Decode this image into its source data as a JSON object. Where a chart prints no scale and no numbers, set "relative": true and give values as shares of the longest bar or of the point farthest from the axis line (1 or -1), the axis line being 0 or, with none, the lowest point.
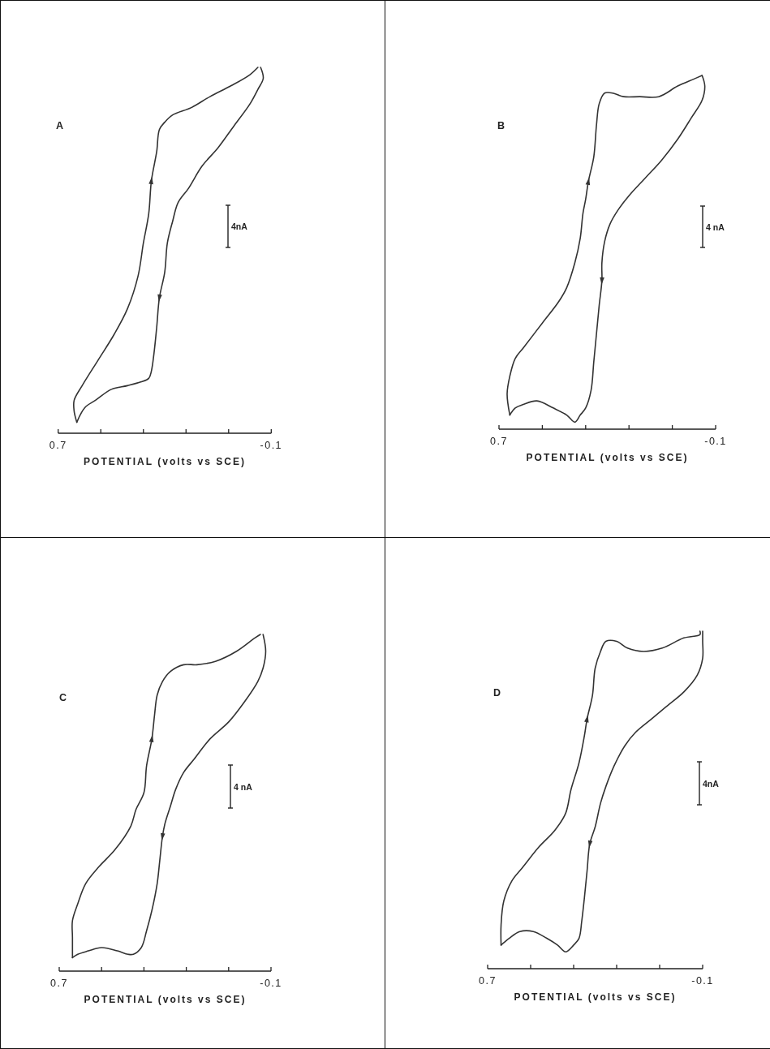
{
  "chart_data": [
    {
      "type": "line",
      "title": "A",
      "xlabel": "POTENTIAL (volts vs SCE)",
      "xlim": [
        0.7,
        -0.1
      ],
      "xticks": [
        {
          "value": 0.7,
          "label": "0.7"
        },
        {
          "value": 0.54,
          "label": null
        },
        {
          "value": 0.38,
          "label": null
        },
        {
          "value": 0.22,
          "label": null
        },
        {
          "value": 0.06,
          "label": null
        },
        {
          "value": -0.1,
          "label": "-0.1"
        }
      ],
      "relative": true,
      "annotations": [
        "4nA"
      ],
      "series": [
        {
          "color": "#333333",
          "x": [
            -0.06,
            -0.07,
            -0.05,
            -0.02,
            0.04,
            0.1,
            0.16,
            0.21,
            0.25,
            0.27,
            0.29,
            0.3,
            0.32,
            0.33,
            0.34,
            0.35,
            0.36,
            0.39,
            0.44,
            0.5,
            0.56,
            0.6,
            0.63
          ],
          "values": [
            1.0,
            0.97,
            0.94,
            0.9,
            0.84,
            0.78,
            0.73,
            0.67,
            0.63,
            0.58,
            0.52,
            0.44,
            0.37,
            0.29,
            0.22,
            0.17,
            0.15,
            0.14,
            0.13,
            0.12,
            0.09,
            0.07,
            0.03
          ]
        },
        {
          "color": "#333333",
          "x": [
            0.63,
            0.64,
            0.64,
            0.61,
            0.55,
            0.49,
            0.44,
            0.4,
            0.38,
            0.36,
            0.35,
            0.33,
            0.32,
            0.3,
            0.27,
            0.2,
            0.13,
            0.05,
            -0.02,
            -0.05
          ],
          "values": [
            0.03,
            0.06,
            0.09,
            0.13,
            0.2,
            0.27,
            0.34,
            0.43,
            0.52,
            0.6,
            0.69,
            0.77,
            0.83,
            0.85,
            0.87,
            0.89,
            0.92,
            0.95,
            0.98,
            1.0
          ]
        }
      ]
    },
    {
      "type": "line",
      "title": "B",
      "xlabel": "POTENTIAL (volts vs SCE)",
      "xlim": [
        0.7,
        -0.1
      ],
      "xticks": [
        {
          "value": 0.7,
          "label": "0.7"
        },
        {
          "value": 0.54,
          "label": null
        },
        {
          "value": 0.38,
          "label": null
        },
        {
          "value": 0.22,
          "label": null
        },
        {
          "value": 0.06,
          "label": null
        },
        {
          "value": -0.1,
          "label": "-0.1"
        }
      ],
      "relative": true,
      "annotations": [
        "4 nA"
      ],
      "series": [
        {
          "color": "#333333",
          "x": [
            -0.05,
            -0.06,
            -0.05,
            -0.01,
            0.04,
            0.1,
            0.16,
            0.22,
            0.26,
            0.29,
            0.31,
            0.32,
            0.32,
            0.33,
            0.34,
            0.35,
            0.36,
            0.38,
            0.4,
            0.42,
            0.45,
            0.5,
            0.56,
            0.61,
            0.64,
            0.66
          ],
          "values": [
            1.0,
            0.97,
            0.93,
            0.88,
            0.82,
            0.76,
            0.71,
            0.66,
            0.62,
            0.58,
            0.53,
            0.47,
            0.42,
            0.35,
            0.27,
            0.19,
            0.11,
            0.06,
            0.04,
            0.02,
            0.04,
            0.06,
            0.08,
            0.07,
            0.06,
            0.04
          ]
        },
        {
          "color": "#333333",
          "x": [
            0.66,
            0.67,
            0.66,
            0.64,
            0.61,
            0.54,
            0.48,
            0.45,
            0.42,
            0.4,
            0.39,
            0.38,
            0.37,
            0.35,
            0.34,
            0.33,
            0.31,
            0.28,
            0.24,
            0.18,
            0.11,
            0.04,
            -0.02,
            -0.05
          ],
          "values": [
            0.04,
            0.1,
            0.15,
            0.2,
            0.23,
            0.3,
            0.36,
            0.4,
            0.47,
            0.54,
            0.61,
            0.65,
            0.7,
            0.77,
            0.86,
            0.92,
            0.95,
            0.95,
            0.94,
            0.94,
            0.94,
            0.97,
            0.99,
            1.0
          ]
        }
      ]
    },
    {
      "type": "line",
      "title": "C",
      "xlabel": "POTENTIAL (volts vs SCE)",
      "xlim": [
        0.7,
        -0.1
      ],
      "xticks": [
        {
          "value": 0.7,
          "label": "0.7"
        },
        {
          "value": 0.54,
          "label": null
        },
        {
          "value": 0.38,
          "label": null
        },
        {
          "value": 0.22,
          "label": null
        },
        {
          "value": 0.06,
          "label": null
        },
        {
          "value": -0.1,
          "label": "-0.1"
        }
      ],
      "relative": true,
      "annotations": [
        "4 nA"
      ],
      "series": [
        {
          "color": "#333333",
          "x": [
            -0.07,
            -0.08,
            -0.07,
            -0.05,
            0.0,
            0.06,
            0.13,
            0.19,
            0.23,
            0.26,
            0.28,
            0.3,
            0.31,
            0.32,
            0.33,
            0.35,
            0.37,
            0.39,
            0.42,
            0.44,
            0.48,
            0.54,
            0.59,
            0.63,
            0.65
          ],
          "values": [
            1.0,
            0.95,
            0.9,
            0.86,
            0.8,
            0.74,
            0.69,
            0.63,
            0.59,
            0.54,
            0.49,
            0.44,
            0.4,
            0.33,
            0.26,
            0.18,
            0.12,
            0.07,
            0.05,
            0.05,
            0.06,
            0.07,
            0.06,
            0.05,
            0.04
          ]
        },
        {
          "color": "#333333",
          "x": [
            0.65,
            0.65,
            0.65,
            0.63,
            0.6,
            0.55,
            0.49,
            0.43,
            0.41,
            0.38,
            0.37,
            0.35,
            0.34,
            0.33,
            0.31,
            0.28,
            0.23,
            0.18,
            0.11,
            0.03,
            -0.04,
            -0.06
          ],
          "values": [
            0.04,
            0.1,
            0.15,
            0.2,
            0.26,
            0.31,
            0.36,
            0.43,
            0.48,
            0.53,
            0.61,
            0.69,
            0.76,
            0.82,
            0.86,
            0.89,
            0.91,
            0.91,
            0.92,
            0.95,
            0.99,
            1.0
          ]
        }
      ]
    },
    {
      "type": "line",
      "title": "D",
      "xlabel": "POTENTIAL (volts vs SCE)",
      "xlim": [
        0.7,
        -0.1
      ],
      "xticks": [
        {
          "value": 0.7,
          "label": "0.7"
        },
        {
          "value": 0.54,
          "label": null
        },
        {
          "value": 0.38,
          "label": null
        },
        {
          "value": 0.22,
          "label": null
        },
        {
          "value": 0.06,
          "label": null
        },
        {
          "value": -0.1,
          "label": "-0.1"
        }
      ],
      "relative": true,
      "annotations": [
        "4nA"
      ],
      "series": [
        {
          "color": "#333333",
          "x": [
            -0.1,
            -0.1,
            -0.1,
            -0.08,
            -0.03,
            0.03,
            0.09,
            0.15,
            0.19,
            0.23,
            0.26,
            0.28,
            0.3,
            0.32,
            0.33,
            0.34,
            0.35,
            0.36,
            0.38,
            0.41,
            0.44,
            0.48,
            0.53,
            0.58,
            0.62,
            0.65
          ],
          "values": [
            1.0,
            0.97,
            0.92,
            0.87,
            0.82,
            0.78,
            0.74,
            0.7,
            0.66,
            0.6,
            0.54,
            0.49,
            0.42,
            0.37,
            0.29,
            0.21,
            0.14,
            0.09,
            0.07,
            0.05,
            0.07,
            0.09,
            0.11,
            0.11,
            0.09,
            0.07
          ]
        },
        {
          "color": "#333333",
          "x": [
            0.65,
            0.65,
            0.64,
            0.61,
            0.57,
            0.51,
            0.45,
            0.41,
            0.39,
            0.36,
            0.34,
            0.33,
            0.31,
            0.3,
            0.28,
            0.26,
            0.22,
            0.18,
            0.12,
            0.05,
            -0.03,
            -0.09,
            -0.09
          ],
          "values": [
            0.07,
            0.13,
            0.2,
            0.26,
            0.3,
            0.36,
            0.41,
            0.46,
            0.53,
            0.61,
            0.69,
            0.74,
            0.81,
            0.89,
            0.94,
            0.97,
            0.97,
            0.95,
            0.94,
            0.95,
            0.98,
            0.99,
            1.0
          ]
        }
      ]
    }
  ]
}
